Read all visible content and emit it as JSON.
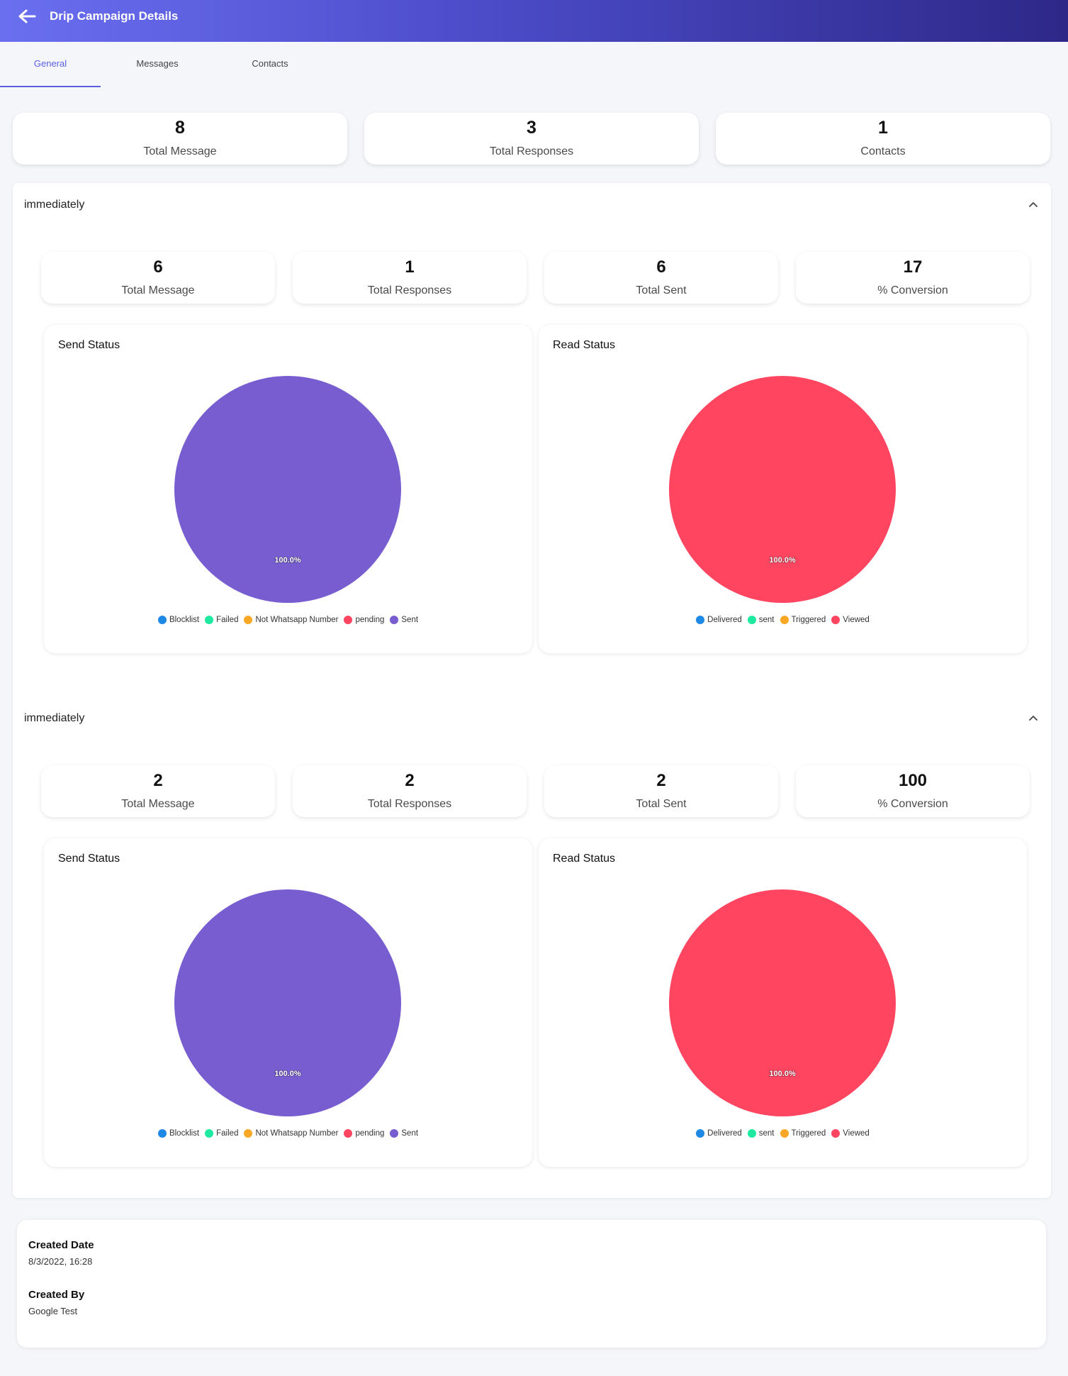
{
  "header": {
    "title": "Drip Campaign Details"
  },
  "tabs": [
    {
      "label": "General",
      "active": true
    },
    {
      "label": "Messages",
      "active": false
    },
    {
      "label": "Contacts",
      "active": false
    }
  ],
  "summary": [
    {
      "value": "8",
      "label": "Total Message"
    },
    {
      "value": "3",
      "label": "Total Responses"
    },
    {
      "value": "1",
      "label": "Contacts"
    }
  ],
  "steps": [
    {
      "title": "immediately",
      "stats": [
        {
          "value": "6",
          "label": "Total Message"
        },
        {
          "value": "1",
          "label": "Total Responses"
        },
        {
          "value": "6",
          "label": "Total Sent"
        },
        {
          "value": "17",
          "label": "% Conversion"
        }
      ],
      "send_title": "Send Status",
      "read_title": "Read Status"
    },
    {
      "title": "immediately",
      "stats": [
        {
          "value": "2",
          "label": "Total Message"
        },
        {
          "value": "2",
          "label": "Total Responses"
        },
        {
          "value": "2",
          "label": "Total Sent"
        },
        {
          "value": "100",
          "label": "% Conversion"
        }
      ],
      "send_title": "Send Status",
      "read_title": "Read Status"
    }
  ],
  "meta": {
    "created_date_label": "Created Date",
    "created_date": "8/3/2022, 16:28",
    "created_by_label": "Created By",
    "created_by": "Google Test"
  },
  "chart_data": [
    {
      "type": "pie",
      "title": "Send Status",
      "categories": [
        "Blocklist",
        "Failed",
        "Not Whatsapp Number",
        "pending",
        "Sent"
      ],
      "values": [
        0,
        0,
        0,
        0,
        100
      ],
      "colors": [
        "#1e88e5",
        "#1de9a0",
        "#f9a825",
        "#ff4560",
        "#775dd0"
      ],
      "data_label": "100.0%",
      "legend": "bottom"
    },
    {
      "type": "pie",
      "title": "Read Status",
      "categories": [
        "Delivered",
        "sent",
        "Triggered",
        "Viewed"
      ],
      "values": [
        0,
        0,
        0,
        100
      ],
      "colors": [
        "#1e88e5",
        "#1de9a0",
        "#f9a825",
        "#ff4560"
      ],
      "data_label": "100.0%",
      "legend": "bottom"
    },
    {
      "type": "pie",
      "title": "Send Status",
      "categories": [
        "Blocklist",
        "Failed",
        "Not Whatsapp Number",
        "pending",
        "Sent"
      ],
      "values": [
        0,
        0,
        0,
        0,
        100
      ],
      "colors": [
        "#1e88e5",
        "#1de9a0",
        "#f9a825",
        "#ff4560",
        "#775dd0"
      ],
      "data_label": "100.0%",
      "legend": "bottom"
    },
    {
      "type": "pie",
      "title": "Read Status",
      "categories": [
        "Delivered",
        "sent",
        "Triggered",
        "Viewed"
      ],
      "values": [
        0,
        0,
        0,
        100
      ],
      "colors": [
        "#1e88e5",
        "#1de9a0",
        "#f9a825",
        "#ff4560"
      ],
      "data_label": "100.0%",
      "legend": "bottom"
    }
  ]
}
